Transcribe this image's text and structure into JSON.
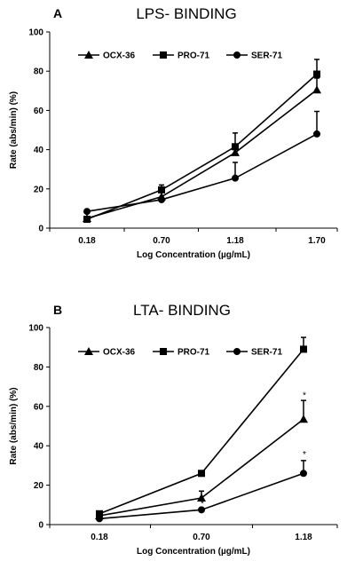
{
  "chart_data": [
    {
      "type": "line",
      "panel_label": "A",
      "title": "LPS- BINDING",
      "xlabel": "Log Concentration (µg/mL)",
      "ylabel": "Rate (abs/min) (%)",
      "categories": [
        "0.18",
        "0.70",
        "1.18",
        "1.70"
      ],
      "ylim": [
        0,
        100
      ],
      "yticks": [
        "0",
        "20",
        "40",
        "60",
        "80",
        "100"
      ],
      "grid": false,
      "legend_position": "top",
      "series": [
        {
          "name": "OCX-36",
          "marker": "triangle",
          "values": [
            5,
            16,
            38.5,
            70.5
          ],
          "errors": [
            0,
            0,
            0,
            6
          ]
        },
        {
          "name": "PRO-71",
          "marker": "square",
          "values": [
            4.5,
            19.5,
            41.5,
            78.5
          ],
          "errors": [
            0,
            2.5,
            7,
            7.5
          ]
        },
        {
          "name": "SER-71",
          "marker": "circle",
          "values": [
            8.5,
            14.5,
            25.5,
            48
          ],
          "errors": [
            0,
            0,
            8,
            11.5
          ]
        }
      ],
      "annotations": []
    },
    {
      "type": "line",
      "panel_label": "B",
      "title": "LTA- BINDING",
      "xlabel": "Log Concentration (µg/mL)",
      "ylabel": "Rate (abs/min) (%)",
      "categories": [
        "0.18",
        "0.70",
        "1.18"
      ],
      "ylim": [
        0,
        100
      ],
      "yticks": [
        "0",
        "20",
        "40",
        "60",
        "80",
        "100"
      ],
      "grid": false,
      "legend_position": "top",
      "series": [
        {
          "name": "OCX-36",
          "marker": "triangle",
          "values": [
            4.5,
            13.5,
            53.5
          ],
          "errors": [
            0,
            3.5,
            9.5
          ]
        },
        {
          "name": "PRO-71",
          "marker": "square",
          "values": [
            5.5,
            26,
            89
          ],
          "errors": [
            0,
            0,
            6
          ]
        },
        {
          "name": "SER-71",
          "marker": "circle",
          "values": [
            3,
            7.5,
            26
          ],
          "errors": [
            0,
            0,
            6.5
          ]
        }
      ],
      "annotations": [
        {
          "text": "*",
          "category": "0.70",
          "y": 11
        },
        {
          "text": "*",
          "category": "1.18",
          "y": 66
        },
        {
          "text": "*",
          "category": "1.18",
          "y": 36
        }
      ]
    }
  ]
}
